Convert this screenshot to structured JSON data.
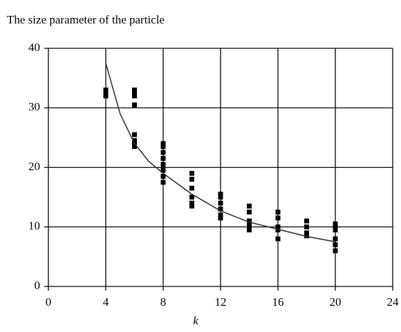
{
  "chart_data": {
    "type": "scatter",
    "title": "The size parameter of the particle",
    "x_label": "k",
    "xlim": [
      0,
      24
    ],
    "xticks": [
      0,
      4,
      8,
      12,
      16,
      20,
      24
    ],
    "ylim": [
      0,
      40
    ],
    "yticks": [
      0,
      10,
      20,
      30,
      40
    ],
    "grid": true,
    "series": [
      {
        "color": "#000000",
        "x": [
          4,
          4,
          4,
          6,
          6,
          6,
          6,
          6,
          6,
          6,
          6,
          8,
          8,
          8,
          8,
          8,
          8,
          8,
          8,
          10,
          10,
          10,
          10,
          10,
          10,
          12,
          12,
          12,
          12,
          12,
          12,
          14,
          14,
          14,
          14,
          14,
          14,
          16,
          16,
          16,
          16,
          16,
          18,
          18,
          18,
          18,
          20,
          20,
          20,
          20,
          20,
          20
        ],
        "values": [
          32,
          32.5,
          33,
          33,
          32.5,
          32,
          30.5,
          25.5,
          24.5,
          24,
          23.5,
          24,
          23.5,
          22.5,
          21.5,
          20.5,
          19.5,
          18.5,
          17.5,
          19,
          18,
          16.5,
          15,
          14,
          13.5,
          15.5,
          15,
          14,
          13,
          12,
          11.5,
          13.5,
          12.5,
          11,
          10.5,
          10,
          9.5,
          12.5,
          11.5,
          10,
          9.5,
          8,
          11,
          10,
          9,
          8.5,
          10.5,
          10,
          9.5,
          8,
          7,
          6
        ]
      }
    ],
    "curve": {
      "color": "#333333",
      "x": [
        4,
        5,
        6,
        7,
        8,
        10,
        12,
        14,
        16,
        18,
        20
      ],
      "values": [
        37.5,
        29,
        24,
        21,
        19,
        15.5,
        12.7,
        10.8,
        9.6,
        8.4,
        7.5
      ]
    }
  }
}
